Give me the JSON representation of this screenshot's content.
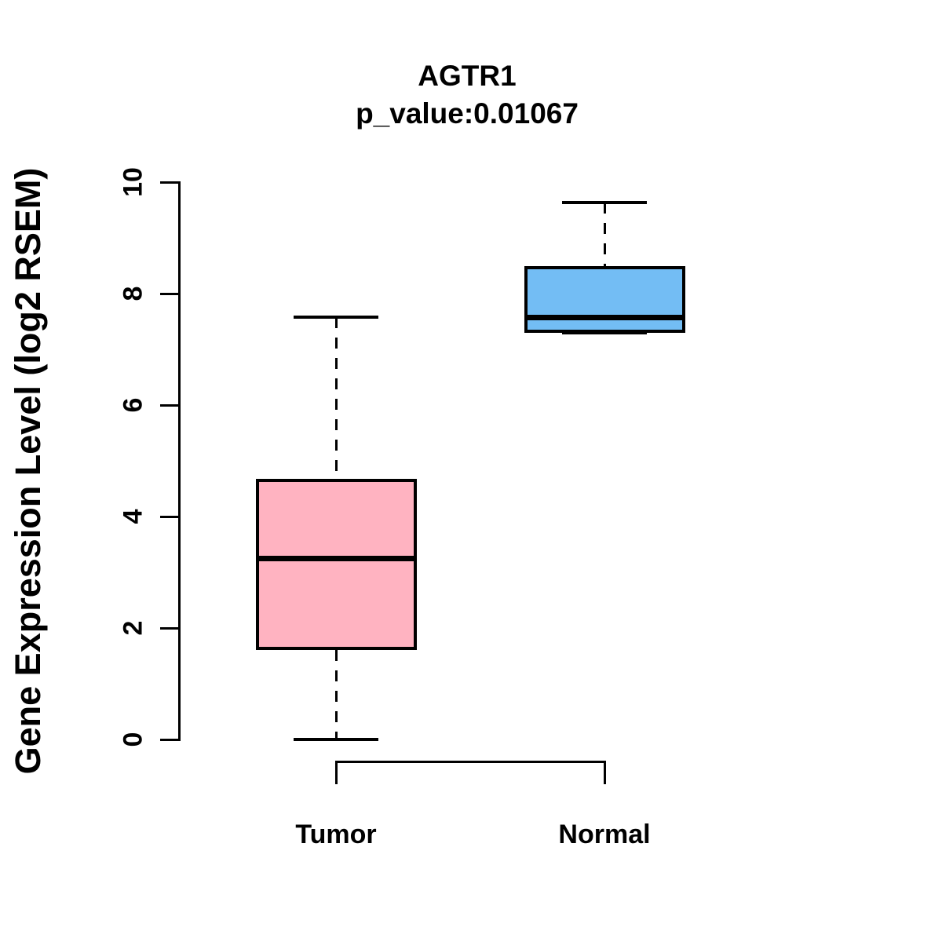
{
  "chart_data": {
    "type": "boxplot",
    "title": "AGTR1",
    "subtitle": "p_value:0.01067",
    "ylabel": "Gene Expression Level (log2 RSEM)",
    "ylim": [
      0,
      10
    ],
    "yticks": [
      0,
      2,
      4,
      6,
      8,
      10
    ],
    "categories": [
      "Tumor",
      "Normal"
    ],
    "grid": false,
    "series": [
      {
        "name": "Tumor",
        "color": "#FFB3C1",
        "whisker_low": 0.0,
        "q1": 1.6,
        "median": 3.24,
        "q3": 4.68,
        "whisker_high": 7.58
      },
      {
        "name": "Normal",
        "color": "#73BDF4",
        "whisker_low": 7.3,
        "q1": 7.3,
        "median": 7.57,
        "q3": 8.49,
        "whisker_high": 9.63
      }
    ]
  }
}
